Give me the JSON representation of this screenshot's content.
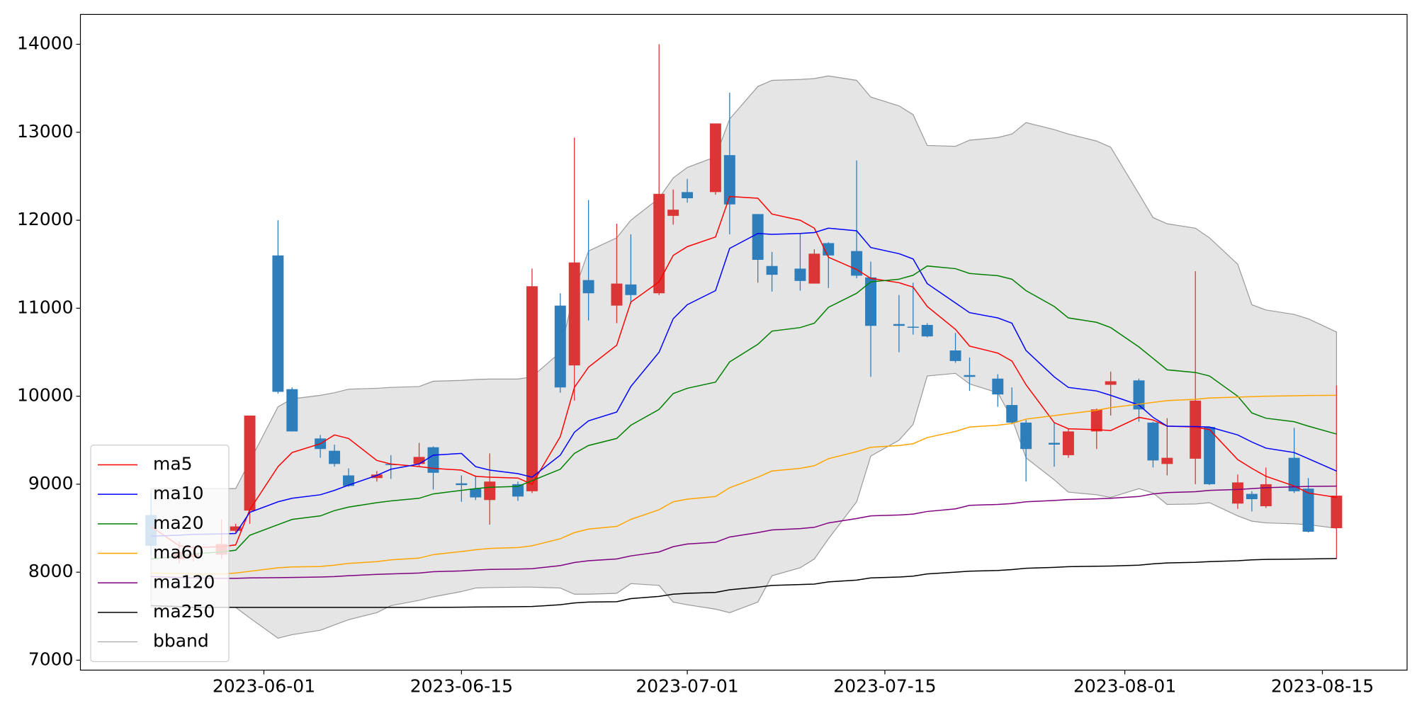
{
  "chart_data": {
    "type": "candlestick",
    "x": [
      "2023-05-24",
      "2023-05-26",
      "2023-05-27",
      "2023-05-29",
      "2023-05-30",
      "2023-05-31",
      "2023-06-02",
      "2023-06-03",
      "2023-06-05",
      "2023-06-06",
      "2023-06-07",
      "2023-06-09",
      "2023-06-10",
      "2023-06-12",
      "2023-06-13",
      "2023-06-15",
      "2023-06-16",
      "2023-06-17",
      "2023-06-19",
      "2023-06-20",
      "2023-06-22",
      "2023-06-23",
      "2023-06-24",
      "2023-06-26",
      "2023-06-27",
      "2023-06-29",
      "2023-06-30",
      "2023-07-01",
      "2023-07-03",
      "2023-07-04",
      "2023-07-06",
      "2023-07-07",
      "2023-07-09",
      "2023-07-10",
      "2023-07-11",
      "2023-07-13",
      "2023-07-14",
      "2023-07-16",
      "2023-07-17",
      "2023-07-18",
      "2023-07-20",
      "2023-07-21",
      "2023-07-23",
      "2023-07-24",
      "2023-07-25",
      "2023-07-27",
      "2023-07-28",
      "2023-07-30",
      "2023-07-31",
      "2023-08-02",
      "2023-08-03",
      "2023-08-04",
      "2023-08-06",
      "2023-08-07",
      "2023-08-09",
      "2023-08-10",
      "2023-08-11",
      "2023-08-13",
      "2023-08-14",
      "2023-08-16"
    ],
    "open": [
      8650,
      8150,
      8170,
      8200,
      8470,
      8700,
      11600,
      10080,
      9520,
      9380,
      9100,
      9070,
      9230,
      9230,
      9420,
      9010,
      8950,
      8820,
      9000,
      8920,
      11030,
      10350,
      11320,
      11030,
      11270,
      11170,
      12050,
      12320,
      12320,
      12740,
      12070,
      11480,
      11450,
      11280,
      11740,
      11650,
      11350,
      10820,
      10790,
      10810,
      10520,
      10240,
      10200,
      9900,
      9700,
      9470,
      9330,
      9600,
      10130,
      10180,
      9700,
      9230,
      9290,
      9650,
      8780,
      8890,
      8750,
      9300,
      8950,
      8500
    ],
    "high": [
      8900,
      8350,
      8300,
      8600,
      8550,
      9780,
      12000,
      10100,
      9560,
      9450,
      9180,
      9150,
      9330,
      9470,
      9430,
      9100,
      9100,
      9350,
      9030,
      11450,
      11170,
      12940,
      12230,
      11960,
      11840,
      14000,
      12350,
      12470,
      13100,
      13450,
      12070,
      11640,
      11850,
      11670,
      11750,
      12680,
      11530,
      11150,
      11290,
      10830,
      10720,
      10440,
      10250,
      10100,
      9730,
      9700,
      9630,
      9860,
      10280,
      10200,
      9710,
      9750,
      11420,
      9650,
      9110,
      8920,
      9190,
      9640,
      9070,
      10120
    ],
    "low": [
      8200,
      8100,
      8120,
      8150,
      8450,
      8550,
      10030,
      9600,
      9300,
      9200,
      8970,
      9030,
      9060,
      9200,
      8940,
      8800,
      8820,
      8540,
      8810,
      8900,
      10040,
      9950,
      10860,
      10830,
      11050,
      11150,
      11950,
      12200,
      12290,
      11840,
      11290,
      11190,
      11200,
      11280,
      11230,
      11340,
      10220,
      10500,
      10700,
      10670,
      10380,
      10060,
      9880,
      9680,
      9030,
      9200,
      9300,
      9400,
      9780,
      9710,
      9190,
      9100,
      9000,
      8990,
      8720,
      8690,
      8730,
      8900,
      8450,
      8150
    ],
    "close": [
      8300,
      8230,
      8210,
      8320,
      8520,
      9780,
      10050,
      9600,
      9400,
      9230,
      8980,
      9110,
      9220,
      9310,
      9130,
      8990,
      8850,
      9030,
      8860,
      11250,
      10100,
      11520,
      11170,
      11280,
      11150,
      12300,
      12120,
      12250,
      13100,
      12180,
      11550,
      11380,
      11310,
      11620,
      11600,
      11370,
      10800,
      10800,
      10780,
      10680,
      10400,
      10220,
      10020,
      9700,
      9400,
      9450,
      9600,
      9850,
      10170,
      9850,
      9270,
      9300,
      9950,
      9000,
      9020,
      8830,
      9000,
      8920,
      8460,
      8870
    ],
    "up_color": "#dc3535",
    "down_color": "#2e7ebb",
    "lines": [
      {
        "name": "ma5",
        "color": "#ff0000",
        "values": [
          8520,
          8300,
          8280,
          8290,
          8310,
          8710,
          9200,
          9360,
          9460,
          9560,
          9520,
          9270,
          9230,
          9200,
          9180,
          9160,
          9090,
          9080,
          9070,
          9000,
          9540,
          10100,
          10330,
          10580,
          11070,
          11300,
          11600,
          11700,
          11810,
          12270,
          12250,
          12070,
          12000,
          11910,
          11580,
          11440,
          11340,
          11290,
          11240,
          11020,
          10760,
          10570,
          10490,
          10400,
          10130,
          9700,
          9630,
          9620,
          9610,
          9760,
          9730,
          9660,
          9650,
          9620,
          9280,
          9180,
          9090,
          8980,
          8900,
          8850
        ]
      },
      {
        "name": "ma10",
        "color": "#0000ff",
        "values": [
          8410,
          8420,
          8430,
          8435,
          8440,
          8680,
          8800,
          8840,
          8880,
          8930,
          8990,
          9100,
          9170,
          9230,
          9330,
          9350,
          9200,
          9160,
          9120,
          9080,
          9330,
          9590,
          9720,
          9820,
          10110,
          10500,
          10880,
          11040,
          11200,
          11680,
          11850,
          11840,
          11850,
          11860,
          11910,
          11880,
          11690,
          11620,
          11560,
          11280,
          11060,
          10950,
          10890,
          10830,
          10520,
          10220,
          10100,
          10060,
          10010,
          9900,
          9760,
          9660,
          9655,
          9650,
          9560,
          9480,
          9410,
          9360,
          9290,
          9150
        ]
      },
      {
        "name": "ma20",
        "color": "#008000",
        "values": [
          8150,
          8180,
          8210,
          8230,
          8250,
          8420,
          8540,
          8600,
          8640,
          8700,
          8740,
          8790,
          8810,
          8840,
          8890,
          8930,
          8950,
          8965,
          8975,
          9040,
          9170,
          9350,
          9440,
          9520,
          9670,
          9850,
          10030,
          10090,
          10160,
          10390,
          10590,
          10740,
          10780,
          10830,
          11010,
          11170,
          11300,
          11330,
          11375,
          11480,
          11450,
          11395,
          11370,
          11330,
          11200,
          11020,
          10890,
          10840,
          10780,
          10560,
          10430,
          10300,
          10270,
          10230,
          10000,
          9810,
          9750,
          9710,
          9660,
          9570
        ]
      },
      {
        "name": "ma60",
        "color": "#ffa500",
        "values": [
          7990,
          7985,
          7980,
          7980,
          7990,
          8010,
          8050,
          8060,
          8065,
          8080,
          8100,
          8120,
          8140,
          8160,
          8200,
          8235,
          8255,
          8270,
          8280,
          8300,
          8380,
          8450,
          8490,
          8520,
          8600,
          8710,
          8800,
          8830,
          8860,
          8960,
          9080,
          9150,
          9180,
          9210,
          9290,
          9370,
          9420,
          9440,
          9460,
          9530,
          9600,
          9650,
          9670,
          9690,
          9740,
          9780,
          9800,
          9840,
          9870,
          9910,
          9930,
          9950,
          9965,
          9980,
          9990,
          9995,
          10000,
          10005,
          10008,
          10010
        ]
      },
      {
        "name": "ma120",
        "color": "#800080",
        "values": [
          7950,
          7940,
          7935,
          7930,
          7930,
          7935,
          7938,
          7940,
          7945,
          7950,
          7960,
          7975,
          7980,
          7990,
          8005,
          8015,
          8025,
          8032,
          8036,
          8040,
          8075,
          8110,
          8130,
          8150,
          8185,
          8230,
          8290,
          8320,
          8340,
          8400,
          8450,
          8480,
          8495,
          8510,
          8560,
          8610,
          8640,
          8650,
          8660,
          8690,
          8720,
          8760,
          8770,
          8780,
          8800,
          8815,
          8825,
          8833,
          8840,
          8860,
          8890,
          8905,
          8915,
          8930,
          8940,
          8950,
          8960,
          8970,
          8975,
          8978
        ]
      },
      {
        "name": "ma250",
        "color": "#000000",
        "values": [
          7620,
          7610,
          7600,
          7600,
          7600,
          7600,
          7600,
          7600,
          7600,
          7600,
          7600,
          7600,
          7600,
          7600,
          7600,
          7602,
          7604,
          7605,
          7608,
          7610,
          7630,
          7650,
          7660,
          7665,
          7700,
          7725,
          7750,
          7760,
          7770,
          7800,
          7830,
          7850,
          7860,
          7865,
          7890,
          7910,
          7935,
          7945,
          7955,
          7980,
          8000,
          8012,
          8020,
          8030,
          8045,
          8055,
          8063,
          8068,
          8070,
          8080,
          8095,
          8105,
          8112,
          8120,
          8130,
          8140,
          8145,
          8148,
          8150,
          8155
        ]
      }
    ],
    "band": {
      "name": "bband",
      "color": "#999999",
      "fill": "#e5e5e5",
      "upper": [
        8950,
        8950,
        8950,
        8950,
        8950,
        9260,
        9880,
        9970,
        10010,
        10040,
        10080,
        10090,
        10100,
        10110,
        10170,
        10180,
        10190,
        10195,
        10195,
        10220,
        10500,
        11200,
        11650,
        11800,
        12000,
        12250,
        12480,
        12600,
        12720,
        13150,
        13520,
        13590,
        13600,
        13610,
        13640,
        13590,
        13400,
        13300,
        13200,
        12850,
        12840,
        12910,
        12940,
        12980,
        13110,
        13030,
        12980,
        12900,
        12830,
        12300,
        12030,
        11960,
        11910,
        11800,
        11500,
        11040,
        10980,
        10930,
        10880,
        10730
      ],
      "lower": [
        7600,
        7600,
        7600,
        7600,
        7600,
        7480,
        7250,
        7290,
        7340,
        7400,
        7460,
        7540,
        7620,
        7680,
        7720,
        7780,
        7820,
        7825,
        7830,
        7830,
        7820,
        7750,
        7750,
        7760,
        7870,
        7850,
        7660,
        7630,
        7580,
        7540,
        7660,
        7960,
        8050,
        8150,
        8380,
        8800,
        9320,
        9500,
        9680,
        10230,
        10260,
        10140,
        10040,
        9750,
        9300,
        9050,
        8910,
        8880,
        8850,
        8950,
        8900,
        8770,
        8775,
        8790,
        8640,
        8580,
        8560,
        8550,
        8540,
        8500
      ]
    },
    "xlim": [
      "2023-05-19",
      "2023-08-21"
    ],
    "xticks": [
      "2023-06-01",
      "2023-06-15",
      "2023-07-01",
      "2023-07-15",
      "2023-08-01",
      "2023-08-15"
    ],
    "ylim": [
      6887,
      14339
    ],
    "yticks": [
      7000,
      8000,
      9000,
      10000,
      11000,
      12000,
      13000,
      14000
    ],
    "legend": "lower left"
  }
}
